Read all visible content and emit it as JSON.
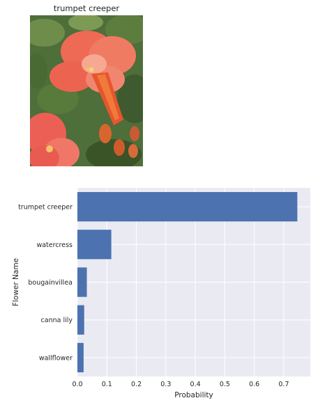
{
  "image": {
    "title": "trumpet creeper",
    "subject-icon": "trumpet-creeper-flower-photo"
  },
  "chart_data": {
    "type": "bar",
    "orientation": "horizontal",
    "categories": [
      "trumpet creeper",
      "watercress",
      "bougainvillea",
      "canna lily",
      "wallflower"
    ],
    "values": [
      0.746,
      0.115,
      0.032,
      0.023,
      0.021
    ],
    "xlabel": "Probability",
    "ylabel": "Flower Name",
    "xlim": [
      0,
      0.79
    ],
    "xticks": [
      0.0,
      0.1,
      0.2,
      0.3,
      0.4,
      0.5,
      0.6,
      0.7
    ],
    "xtick_labels": [
      "0.0",
      "0.1",
      "0.2",
      "0.3",
      "0.4",
      "0.5",
      "0.6",
      "0.7"
    ],
    "grid": true,
    "colors": {
      "bar": "#4c72b0",
      "background": "#eaeaf2",
      "grid": "#ffffff"
    }
  }
}
